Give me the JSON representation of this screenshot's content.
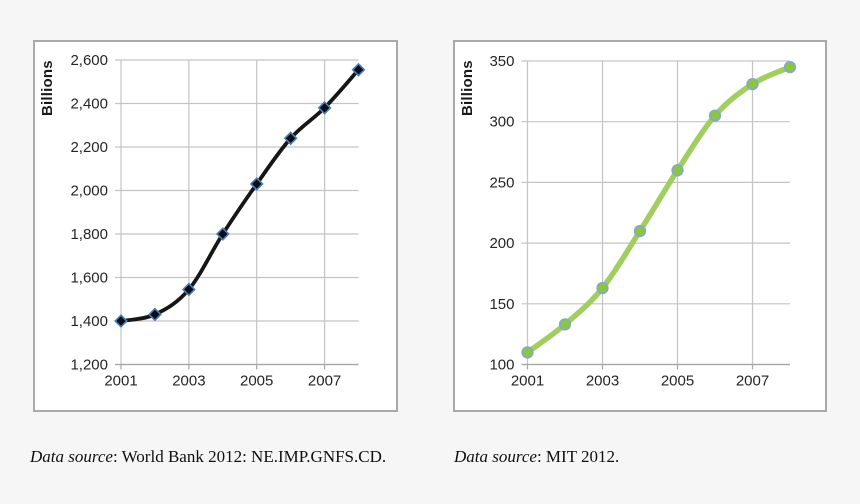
{
  "page": {
    "background": "#f5f6f5",
    "panel_background": "#ffffff",
    "panel_border": "#a9a9a9"
  },
  "captions": [
    {
      "label": "Data source",
      "text": ": World Bank 2012: NE.IMP.GNFS.CD."
    },
    {
      "label": "Data source",
      "text": ": MIT 2012."
    }
  ],
  "chart_data": [
    {
      "type": "line",
      "title": "",
      "xlabel": "",
      "ylabel": "Billions",
      "x": [
        2001,
        2002,
        2003,
        2004,
        2005,
        2006,
        2007,
        2008
      ],
      "values": [
        1400,
        1430,
        1545,
        1800,
        2030,
        2240,
        2380,
        2555
      ],
      "xlim": [
        2001,
        2008
      ],
      "ylim": [
        1200,
        2600
      ],
      "y_ticks": [
        1200,
        1400,
        1600,
        1800,
        2000,
        2200,
        2400,
        2600
      ],
      "y_tick_labels": [
        "1,200",
        "1,400",
        "1,600",
        "1,800",
        "2,000",
        "2,200",
        "2,400",
        "2,600"
      ],
      "x_grid": [
        2001,
        2003,
        2005,
        2007
      ],
      "x_tick_labels": [
        "2001",
        "2003",
        "2005",
        "2007"
      ],
      "grid": true,
      "legend": "none",
      "smooth": true,
      "line": {
        "color": "#161616",
        "width": 3.8
      },
      "marker": {
        "shape": "diamond",
        "size": 5.8,
        "fill": "#0d0d15",
        "stroke": "#4a7eba",
        "stroke_width": 1.6
      },
      "colors": {
        "grid": "#c4c4c4",
        "axis": "#a6a6a6",
        "tick_text": "#262626"
      }
    },
    {
      "type": "line",
      "title": "",
      "xlabel": "",
      "ylabel": "Billions",
      "x": [
        2001,
        2002,
        2003,
        2004,
        2005,
        2006,
        2007,
        2008
      ],
      "values": [
        110,
        133,
        163,
        210,
        260,
        305,
        331,
        345
      ],
      "xlim": [
        2001,
        2008
      ],
      "ylim": [
        100,
        350
      ],
      "y_ticks": [
        100,
        150,
        200,
        250,
        300,
        350
      ],
      "y_tick_labels": [
        "100",
        "150",
        "200",
        "250",
        "300",
        "350"
      ],
      "x_grid": [
        2001,
        2003,
        2005,
        2007
      ],
      "x_tick_labels": [
        "2001",
        "2003",
        "2005",
        "2007"
      ],
      "grid": true,
      "legend": "none",
      "smooth": true,
      "line": {
        "color": "#a0ce60",
        "width": 5.5
      },
      "marker": {
        "shape": "circle",
        "size": 5.3,
        "fill": "#8cc63e",
        "stroke": "#85a9cb",
        "stroke_width": 1.7
      },
      "colors": {
        "grid": "#c4c4c4",
        "axis": "#a6a6a6",
        "tick_text": "#262626"
      }
    }
  ]
}
